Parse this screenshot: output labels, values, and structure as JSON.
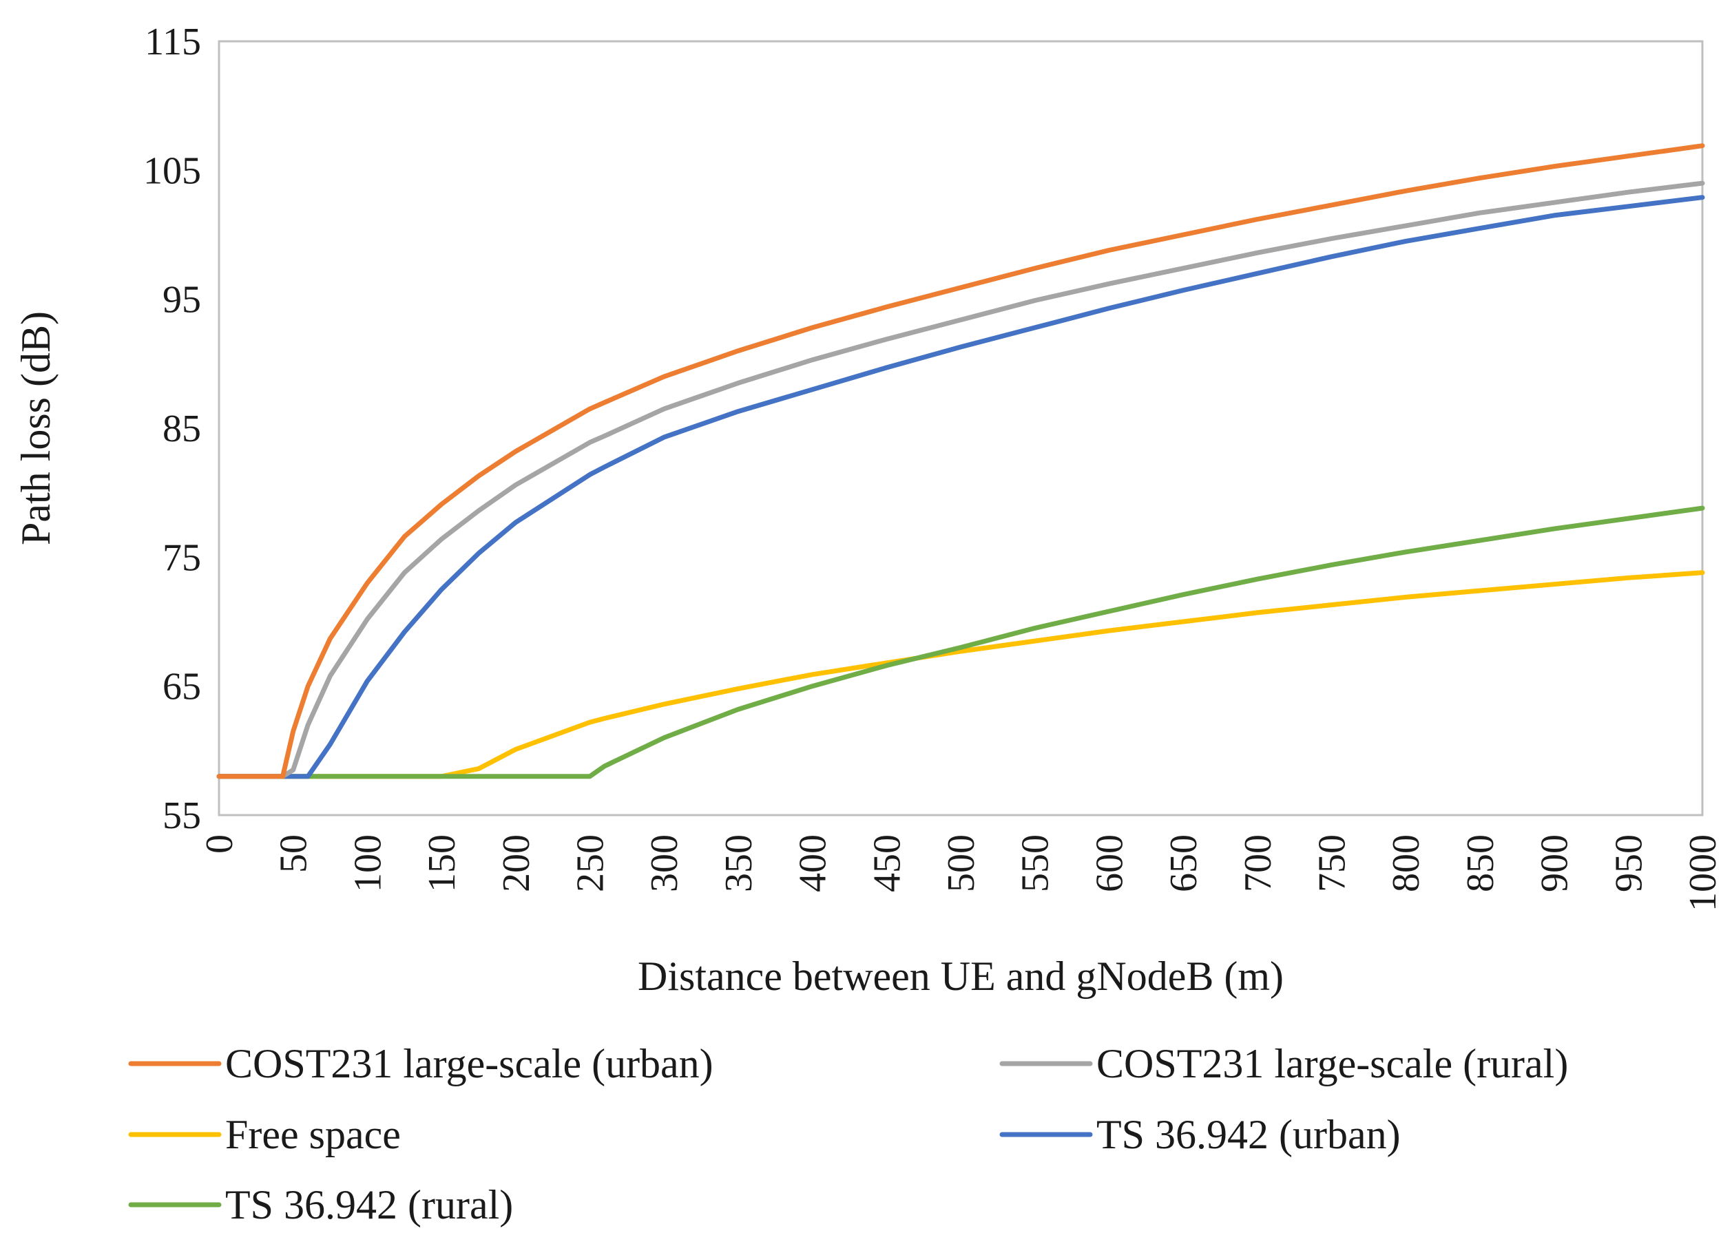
{
  "chart_data": {
    "type": "line",
    "title": "",
    "xlabel": "Distance between UE and gNodeB (m)",
    "ylabel": "Path loss (dB)",
    "xlim": [
      0,
      1000
    ],
    "ylim": [
      55,
      115
    ],
    "x_ticks": [
      "0",
      "50",
      "100",
      "150",
      "200",
      "250",
      "300",
      "350",
      "400",
      "450",
      "500",
      "550",
      "600",
      "650",
      "700",
      "750",
      "800",
      "850",
      "900",
      "950",
      "1000"
    ],
    "y_ticks": [
      "115",
      "105",
      "95",
      "85",
      "75",
      "65",
      "55"
    ],
    "grid": false,
    "legend_position": "bottom",
    "x": [
      0,
      43,
      50,
      60,
      75,
      100,
      125,
      150,
      175,
      200,
      250,
      260,
      300,
      350,
      400,
      450,
      500,
      550,
      600,
      650,
      700,
      750,
      800,
      850,
      900,
      950,
      1000
    ],
    "series": [
      {
        "name": "COST231 large-scale (urban)",
        "color": "#ED7D31",
        "values": [
          58,
          58,
          61.5,
          65.0,
          68.7,
          73.0,
          76.6,
          79.1,
          81.3,
          83.2,
          86.5,
          87.0,
          89.0,
          91.0,
          92.8,
          94.4,
          95.9,
          97.4,
          98.8,
          100.0,
          101.2,
          102.3,
          103.4,
          104.4,
          105.3,
          106.1,
          106.9
        ]
      },
      {
        "name": "COST231 large-scale (rural)",
        "color": "#A5A5A5",
        "values": [
          58,
          58,
          58.5,
          62.0,
          65.8,
          70.2,
          73.8,
          76.4,
          78.6,
          80.6,
          83.9,
          84.4,
          86.5,
          88.5,
          90.3,
          91.9,
          93.4,
          94.9,
          96.2,
          97.4,
          98.6,
          99.7,
          100.7,
          101.7,
          102.5,
          103.3,
          104.0
        ]
      },
      {
        "name": "Free space",
        "color": "#FFC000",
        "values": [
          58,
          58,
          58,
          58,
          58,
          58,
          58,
          58,
          58.6,
          60.1,
          62.2,
          62.5,
          63.6,
          64.8,
          65.9,
          66.8,
          67.7,
          68.5,
          69.3,
          70.0,
          70.7,
          71.3,
          71.9,
          72.4,
          72.9,
          73.4,
          73.8
        ]
      },
      {
        "name": "TS 36.942 (urban)",
        "color": "#4472C4",
        "values": [
          58,
          58,
          58,
          58,
          60.5,
          65.4,
          69.2,
          72.5,
          75.3,
          77.7,
          81.4,
          82.0,
          84.3,
          86.3,
          88.0,
          89.7,
          91.3,
          92.8,
          94.3,
          95.7,
          97.0,
          98.3,
          99.5,
          100.5,
          101.5,
          102.2,
          102.9
        ]
      },
      {
        "name": "TS 36.942 (rural)",
        "color": "#70AD47",
        "values": [
          58,
          58,
          58,
          58,
          58,
          58,
          58,
          58,
          58,
          58,
          58,
          58.8,
          61.0,
          63.2,
          65.0,
          66.6,
          68.0,
          69.5,
          70.8,
          72.1,
          73.3,
          74.4,
          75.4,
          76.3,
          77.2,
          78.0,
          78.8
        ]
      }
    ]
  }
}
